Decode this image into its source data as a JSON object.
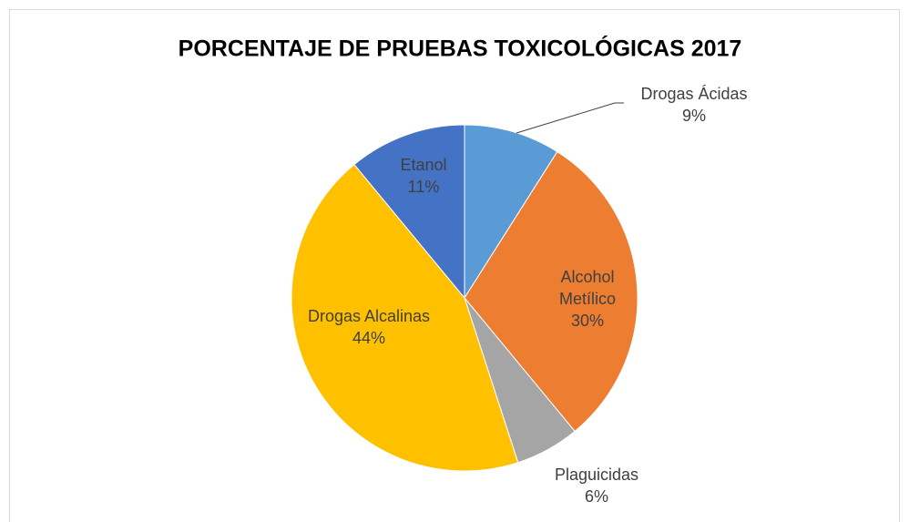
{
  "chart_data": {
    "type": "pie",
    "title": "PORCENTAJE DE  PRUEBAS TOXICOLÓGICAS  2017",
    "categories": [
      "Drogas Ácidas",
      "Alcohol Metílico",
      "Plaguicidas",
      "Drogas Alcalinas",
      "Etanol"
    ],
    "values": [
      9,
      30,
      6,
      44,
      11
    ],
    "value_labels": [
      "9%",
      "30%",
      "6%",
      "44%",
      "11%"
    ],
    "colors": [
      "#5b9bd5",
      "#ed7d31",
      "#a5a5a5",
      "#ffc000",
      "#4472c4"
    ]
  }
}
